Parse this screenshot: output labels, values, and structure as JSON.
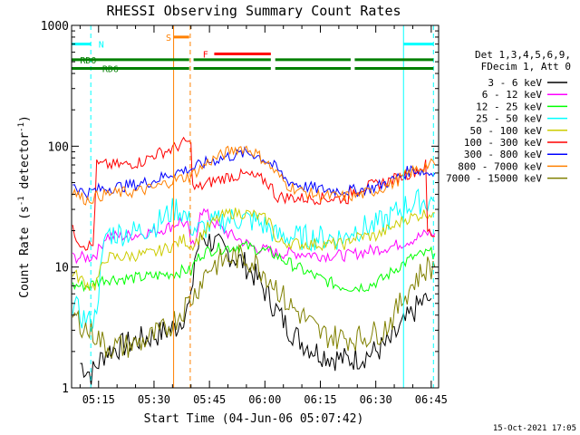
{
  "chart_data": {
    "type": "line",
    "title": "RHESSI Observing Summary Count Rates",
    "xlabel": "Start Time (04-Jun-06 05:07:42)",
    "ylabel_main": "Count Rate (s",
    "ylabel_sup1": "-1",
    "ylabel_mid": " detector",
    "ylabel_sup2": "-1",
    "ylabel_end": ")",
    "footer": "15-Oct-2021 17:05",
    "x_range_min": [
      7.7,
      107
    ],
    "y_scale": "log",
    "ylim": [
      1,
      1000
    ],
    "x_ticks": [
      {
        "label": "05:15",
        "min": 15
      },
      {
        "label": "05:30",
        "min": 30
      },
      {
        "label": "05:45",
        "min": 45
      },
      {
        "label": "06:00",
        "min": 60
      },
      {
        "label": "06:15",
        "min": 75
      },
      {
        "label": "06:30",
        "min": 90
      },
      {
        "label": "06:45",
        "min": 105
      }
    ],
    "y_ticks": [
      {
        "label": "1",
        "value": 1
      },
      {
        "label": "10",
        "value": 10
      },
      {
        "label": "100",
        "value": 100
      },
      {
        "label": "1000",
        "value": 1000
      }
    ],
    "legend_header": [
      "Det 1,3,4,5,6,9,",
      "FDecim 1, Att 0"
    ],
    "legend_position": "right",
    "series": [
      {
        "name": "3 - 6 keV",
        "color": "#000000",
        "x": [
          10,
          13,
          17,
          21,
          26,
          30,
          36,
          40,
          41,
          43,
          46,
          50,
          54,
          58,
          62,
          66,
          70,
          74,
          78,
          82,
          86,
          90,
          94,
          98,
          102,
          105
        ],
        "y": [
          1.6,
          1.3,
          2.0,
          2.2,
          2.5,
          2.7,
          3.2,
          5.0,
          12,
          18,
          16,
          13,
          11,
          8,
          5,
          3.2,
          2.4,
          2.0,
          1.8,
          1.7,
          1.8,
          2.0,
          2.4,
          3.5,
          5.0,
          5.5
        ]
      },
      {
        "name": "6 - 12 keV",
        "color": "#ff00ff",
        "x": [
          8,
          11,
          12.5,
          14.5,
          17,
          22,
          27,
          31,
          35,
          37,
          39,
          40,
          41,
          42.5,
          44,
          47,
          50,
          53,
          56,
          59,
          62,
          63,
          65,
          70,
          75,
          80,
          82.5,
          85,
          90,
          95,
          100,
          104,
          106
        ],
        "y": [
          12,
          12,
          12,
          13,
          18,
          18,
          19,
          20,
          22,
          24,
          22,
          16,
          14,
          30,
          28,
          22,
          19,
          17,
          15,
          14,
          13.5,
          13,
          13,
          13,
          12.5,
          12.5,
          12.5,
          13,
          14,
          15,
          17,
          19,
          19
        ]
      },
      {
        "name": "12 - 25 keV",
        "color": "#00ff00",
        "x": [
          8,
          11,
          12.5,
          14,
          17,
          22,
          27,
          31,
          36,
          39,
          40,
          41,
          43,
          46,
          50,
          54,
          58,
          62,
          66,
          70,
          75,
          80,
          84,
          88,
          92,
          96,
          100,
          104,
          106
        ],
        "y": [
          7,
          7,
          7,
          7.5,
          8,
          8,
          8.2,
          8.5,
          9,
          9.5,
          9,
          11,
          13,
          14,
          14.5,
          15,
          14,
          13,
          11,
          9.5,
          8,
          7,
          6.8,
          7,
          8,
          10,
          12,
          13,
          13
        ]
      },
      {
        "name": "25 - 50 keV",
        "color": "#00ffff",
        "x": [
          8,
          10,
          12.5,
          14,
          17,
          20,
          25,
          30,
          33,
          36,
          38,
          39,
          40,
          42,
          45,
          48,
          51,
          54,
          57,
          60,
          62,
          63,
          65,
          70,
          75,
          80,
          82.5,
          83,
          86,
          90,
          94,
          98,
          102,
          104,
          106
        ],
        "y": [
          5,
          4,
          3.5,
          3.8,
          19,
          19,
          19.5,
          22,
          26,
          31,
          28,
          25,
          22,
          20,
          22,
          24,
          25,
          25,
          24,
          22,
          20,
          18,
          18,
          17.5,
          17.5,
          17.5,
          17.5,
          20,
          21,
          22,
          26,
          32,
          35,
          35,
          35
        ]
      },
      {
        "name": "50 - 100 keV",
        "color": "#cccc00",
        "x": [
          8,
          10,
          12.5,
          14,
          17,
          20,
          25,
          30,
          35,
          38,
          40,
          42,
          45,
          48,
          51,
          54,
          57,
          60,
          62,
          63,
          65,
          70,
          75,
          80,
          82.5,
          83,
          86,
          90,
          94,
          98,
          102,
          104,
          106
        ],
        "y": [
          9,
          8,
          7,
          7,
          12,
          12,
          12.5,
          13,
          15,
          17,
          15,
          17,
          22,
          26,
          28,
          28,
          27,
          25,
          23,
          16,
          16,
          15.5,
          15.5,
          15.5,
          15.5,
          17,
          18,
          18,
          21,
          25,
          27,
          28,
          28
        ]
      },
      {
        "name": "100 - 300 keV",
        "color": "#ff0000",
        "x": [
          8,
          10,
          12,
          13.5,
          14.5,
          17,
          22,
          27,
          30,
          35,
          39,
          40,
          40.5,
          42,
          45,
          50,
          55,
          60,
          62,
          63,
          65,
          70,
          75,
          80,
          82.5,
          83,
          86,
          90,
          94,
          98,
          102,
          103.5,
          104,
          106
        ],
        "y": [
          20,
          16,
          15,
          15,
          70,
          70,
          70,
          75,
          85,
          95,
          110,
          100,
          45,
          45,
          50,
          56,
          58,
          52,
          45,
          38,
          38,
          37,
          37,
          37,
          37,
          42,
          45,
          48,
          52,
          58,
          65,
          70,
          20,
          18
        ]
      },
      {
        "name": "300 - 800 keV",
        "color": "#0000ff",
        "x": [
          8,
          10,
          12,
          14,
          17,
          20,
          25,
          30,
          35,
          40,
          45,
          50,
          55,
          57,
          60,
          63,
          66,
          70,
          75,
          80,
          85,
          90,
          95,
          100,
          104,
          106
        ],
        "y": [
          50,
          43,
          41,
          43,
          45,
          46,
          48,
          52,
          60,
          65,
          75,
          82,
          88,
          86,
          78,
          66,
          52,
          47,
          44,
          43,
          43,
          46,
          53,
          65,
          60,
          60
        ]
      },
      {
        "name": "800 - 7000 keV",
        "color": "#ff8000",
        "x": [
          8,
          10,
          12,
          14,
          17,
          20,
          25,
          30,
          35,
          40,
          45,
          50,
          53,
          55,
          57,
          60,
          63,
          66,
          70,
          75,
          80,
          85,
          90,
          95,
          100,
          104,
          106
        ],
        "y": [
          44,
          38,
          36,
          38,
          40,
          41,
          42,
          45,
          52,
          57,
          75,
          90,
          97,
          96,
          90,
          76,
          60,
          48,
          42,
          39,
          38,
          39,
          43,
          50,
          62,
          70,
          70
        ]
      },
      {
        "name": "7000 - 15000 keV",
        "color": "#808000",
        "x": [
          8,
          10,
          12,
          14,
          17,
          20,
          22,
          25,
          28,
          30,
          33,
          36,
          39,
          41,
          43,
          45,
          48,
          51,
          54,
          57,
          60,
          63,
          66,
          70,
          75,
          80,
          83,
          86,
          89,
          92,
          95,
          98,
          101,
          104,
          106
        ],
        "y": [
          4,
          3.5,
          3,
          2.8,
          2.2,
          2.2,
          2.2,
          2.3,
          2.5,
          2.7,
          3,
          3.8,
          5,
          6,
          8,
          10,
          11,
          12,
          12,
          11,
          9,
          7,
          5,
          4,
          2.8,
          2.6,
          2.6,
          2.6,
          2.8,
          3,
          4,
          6,
          8,
          10,
          10
        ]
      }
    ],
    "annotations": {
      "spans": [
        {
          "label": "N",
          "color": "#00ffff",
          "level": 700,
          "segments": [
            [
              7.7,
              12.9
            ],
            [
              97.5,
              105.6
            ]
          ],
          "label_at": 15
        },
        {
          "label": "RD0",
          "color": "#008000",
          "level": 520,
          "segments": [
            [
              7.7,
              39.5
            ],
            [
              40.7,
              61.6
            ],
            [
              62.8,
              83.2
            ],
            [
              84.3,
              105.6
            ]
          ],
          "label_at": 10
        },
        {
          "label": "RD6",
          "color": "#008000",
          "level": 440,
          "segments": [
            [
              7.7,
              39.5
            ],
            [
              40.7,
              61.6
            ],
            [
              62.8,
              83.2
            ],
            [
              84.3,
              105.6
            ]
          ],
          "label_at": 16
        },
        {
          "label": "S",
          "color": "#ff8000",
          "level": 800,
          "segments": [
            [
              35.3,
              39.5
            ]
          ],
          "label_at": 33.2
        },
        {
          "label": "F",
          "color": "#ff0000",
          "level": 580,
          "segments": [
            [
              46.3,
              61.6
            ]
          ],
          "label_at": 43.2
        }
      ],
      "vlines": [
        {
          "min": 35.3,
          "color": "#ff8000",
          "dash": false
        },
        {
          "min": 39.8,
          "color": "#ff8000",
          "dash": true
        },
        {
          "min": 12.9,
          "color": "#00ffff",
          "dash": true
        },
        {
          "min": 97.5,
          "color": "#00ffff",
          "dash": false
        },
        {
          "min": 105.6,
          "color": "#00ffff",
          "dash": true
        }
      ]
    }
  }
}
